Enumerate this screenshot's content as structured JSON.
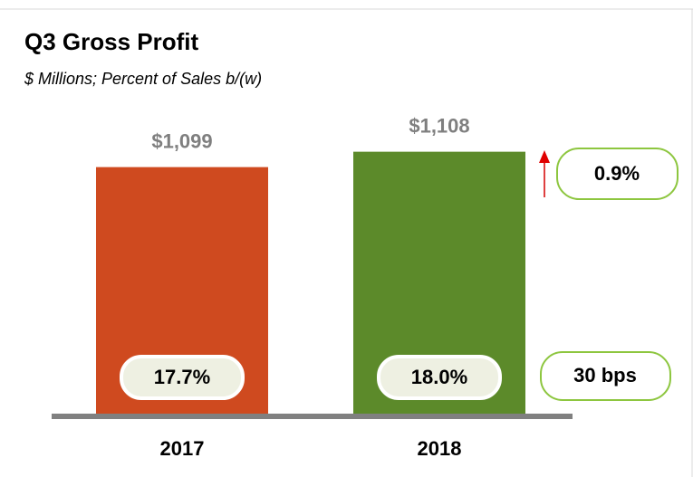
{
  "chart_data": {
    "type": "bar",
    "title": "Q3 Gross Profit",
    "subtitle": "$ Millions; Percent of Sales b/(w)",
    "categories": [
      "2017",
      "2018"
    ],
    "values": [
      1099,
      1108
    ],
    "value_labels": [
      "$1,099",
      "$1,108"
    ],
    "colors": [
      "#cf4a1f",
      "#5c8a2a"
    ],
    "ylim": [
      953,
      1120
    ],
    "annotations": {
      "margins": [
        "17.7%",
        "18.0%"
      ],
      "growth": "0.9%",
      "margin_change": "30 bps"
    }
  }
}
